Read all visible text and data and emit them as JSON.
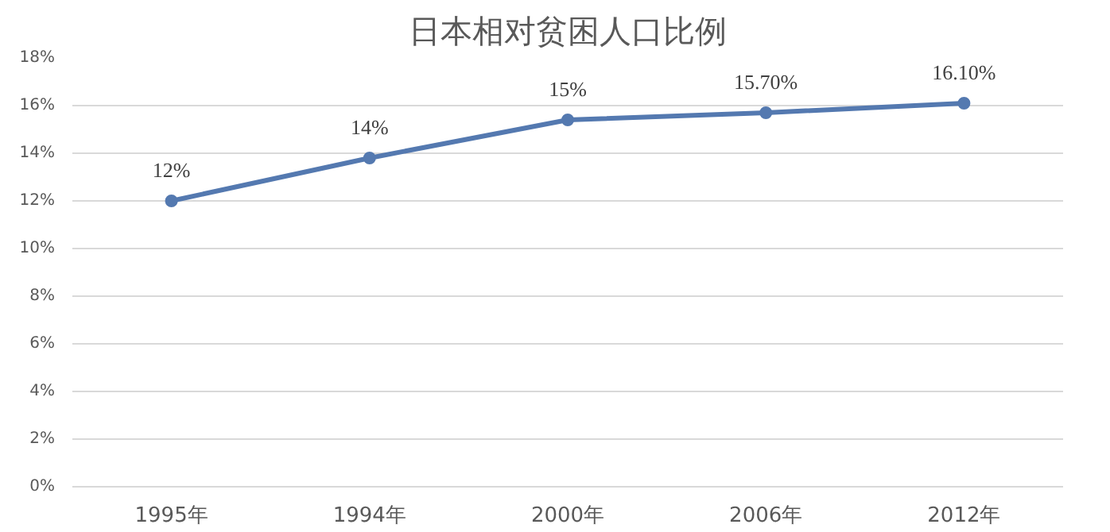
{
  "chart_data": {
    "type": "line",
    "title": "日本相对贫困人口比例",
    "categories": [
      "1995年",
      "1994年",
      "2000年",
      "2006年",
      "2012年"
    ],
    "series": [
      {
        "color": "#5479b0",
        "values": [
          12,
          13.8,
          15.4,
          15.7,
          16.1
        ],
        "value_labels": [
          "12%",
          "14%",
          "15%",
          "15.70%",
          "16.10%"
        ]
      }
    ],
    "ylim": [
      0,
      18
    ],
    "yticks": [
      {
        "value": 0,
        "label": "0%"
      },
      {
        "value": 2,
        "label": "2%"
      },
      {
        "value": 4,
        "label": "4%"
      },
      {
        "value": 6,
        "label": "6%"
      },
      {
        "value": 8,
        "label": "8%"
      },
      {
        "value": 10,
        "label": "10%"
      },
      {
        "value": 12,
        "label": "12%"
      },
      {
        "value": 14,
        "label": "14%"
      },
      {
        "value": 16,
        "label": "16%"
      },
      {
        "value": 18,
        "label": "18%"
      }
    ],
    "grid": "y",
    "marker": "circle",
    "line_style": "solid"
  }
}
